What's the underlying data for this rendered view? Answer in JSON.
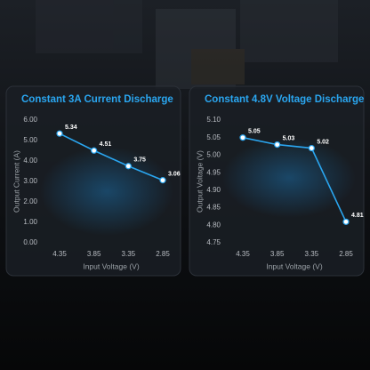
{
  "chart_data": [
    {
      "type": "line",
      "title": "Constant 3A Current Discharge",
      "x_label": "Input Voltage (V)",
      "y_label": "Output Current (A)",
      "categories": [
        "4.35",
        "3.85",
        "3.35",
        "2.85"
      ],
      "values": [
        5.34,
        4.51,
        3.75,
        3.06
      ],
      "color": "#2aa6f0",
      "ylim": [
        0,
        6
      ],
      "yticks": [
        {
          "value": 0,
          "label": "0.00"
        },
        {
          "value": 1,
          "label": "1.00"
        },
        {
          "value": 2,
          "label": "2.00"
        },
        {
          "value": 3,
          "label": "3.00"
        },
        {
          "value": 4,
          "label": "4.00"
        },
        {
          "value": 5,
          "label": "5.00"
        },
        {
          "value": 6,
          "label": "6.00"
        }
      ]
    },
    {
      "type": "line",
      "title": "Constant 4.8V Voltage Discharge",
      "x_label": "Input Voltage (V)",
      "y_label": "Output Voltage (V)",
      "categories": [
        "4.35",
        "3.85",
        "3.35",
        "2.85"
      ],
      "values": [
        5.05,
        5.03,
        5.02,
        4.81
      ],
      "color": "#2aa6f0",
      "ylim": [
        4.75,
        5.1
      ],
      "yticks": [
        4.75,
        {
          "value": 4.8,
          "label": "4.80"
        },
        4.85,
        {
          "value": 4.9,
          "label": "4.90"
        },
        4.95,
        {
          "value": 5,
          "label": "5.00"
        },
        5.05,
        {
          "value": 5.1,
          "label": "5.10"
        }
      ]
    }
  ]
}
